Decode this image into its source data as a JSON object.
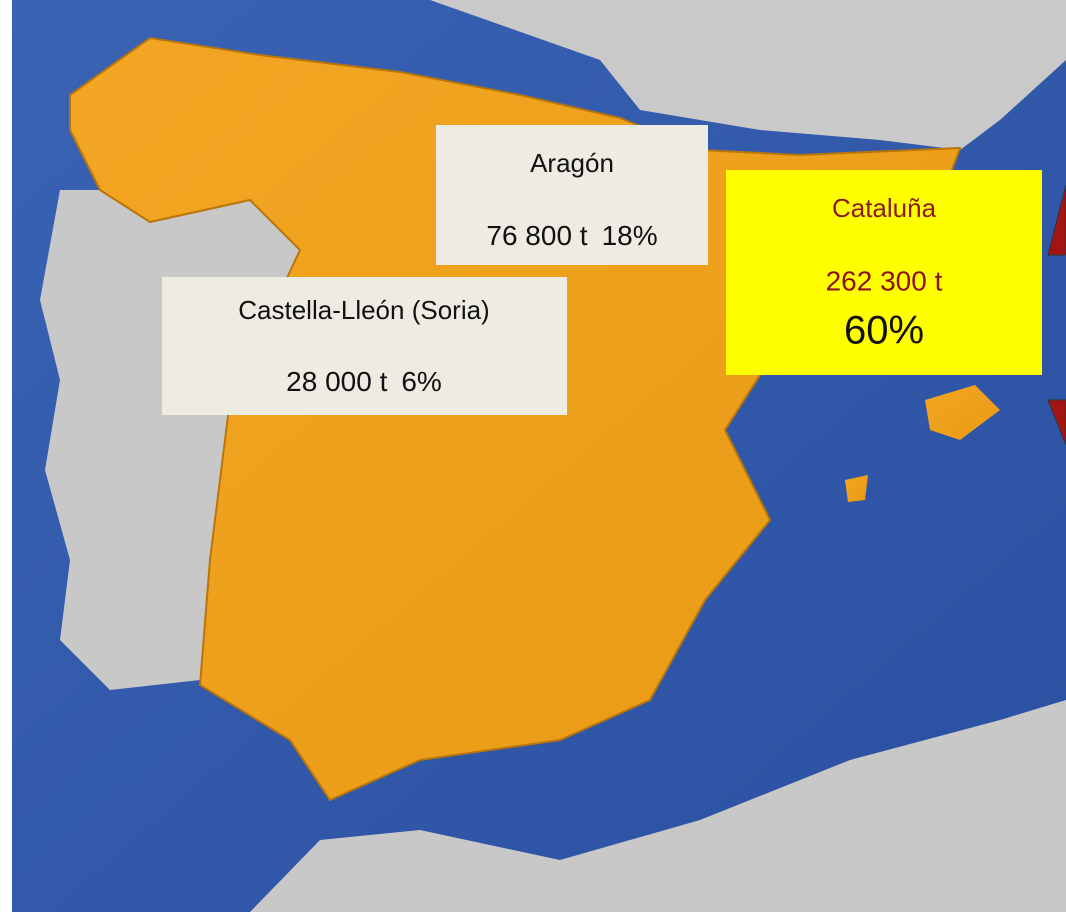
{
  "regions": [
    {
      "name": "Aragón",
      "amount": "76 800 t",
      "share": "18%"
    },
    {
      "name": "Castella-Lleón (Soria)",
      "amount": "28 000 t",
      "share": "6%"
    },
    {
      "name": "Cataluña",
      "amount": "262 300 t",
      "share": "60%"
    }
  ]
}
